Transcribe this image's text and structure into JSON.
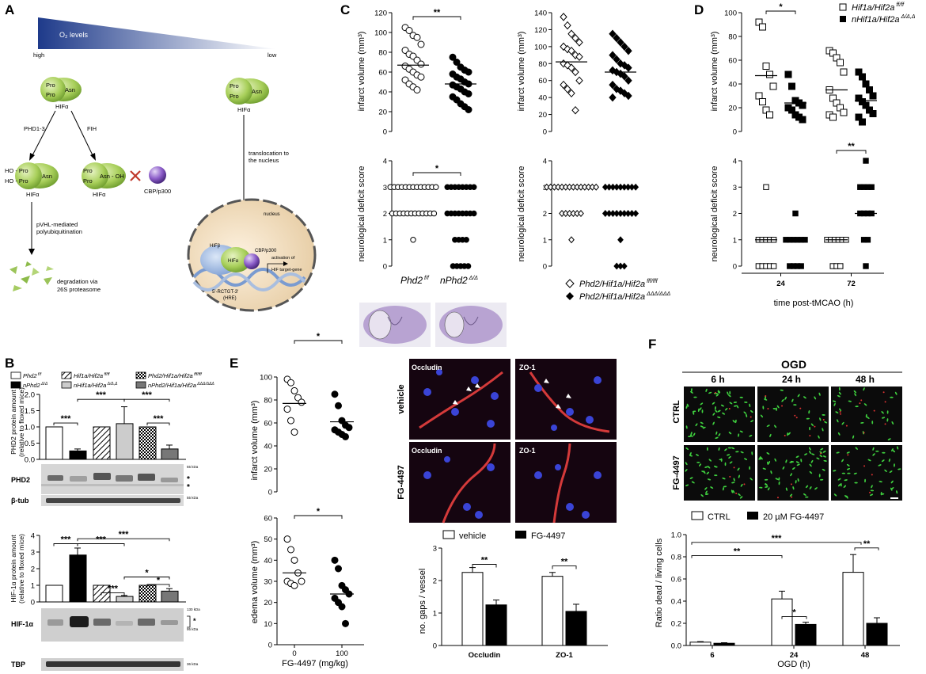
{
  "panel_letters": {
    "A": "A",
    "B": "B",
    "C": "C",
    "D": "D",
    "E": "E",
    "F": "F"
  },
  "panelA": {
    "o2_label": "O₂ levels",
    "high": "high",
    "low": "low",
    "pro": "Pro",
    "asn": "Asn",
    "hif_alpha": "HIFα",
    "phd": "PHD1-3",
    "fih": "FIH",
    "ho_pro": "HO - Pro",
    "asn_oh": "Asn - OH",
    "cbp": "CBP/p300",
    "pvhl_1": "pVHL-mediated",
    "pvhl_2": "polyubiquitination",
    "deg_1": "degradation via",
    "deg_2": "26S proteasome",
    "transloc_1": "translocation to",
    "transloc_2": "the nucleus",
    "nucleus": "nucleus",
    "hif_beta": "HIFβ",
    "hre_seq": "5'-RCTGT-3'",
    "hre": "(HRE)",
    "act_1": "activation of",
    "act_2": "HIF target-gene"
  },
  "panelB": {
    "legend": [
      {
        "label": "Phd2",
        "sup": " f/f",
        "fill": "#ffffff",
        "pattern": "none"
      },
      {
        "label": "nPhd2",
        "sup": " Δ/Δ",
        "fill": "#000000",
        "pattern": "none"
      },
      {
        "label": "Hif1a/Hif2a",
        "sup": " ff/ff",
        "fill": "#ffffff",
        "pattern": "hatch"
      },
      {
        "label": "nHif1a/Hif2a",
        "sup": " Δ/Δ,Δ",
        "fill": "#cccccc",
        "pattern": "none"
      },
      {
        "label": "Phd2/Hif1a/Hif2a",
        "sup": " fff/fff",
        "fill": "#ffffff",
        "pattern": "check"
      },
      {
        "label": "nPhd2/Hif1a/Hif2a",
        "sup": " ΔΔΔ/ΔΔΔ",
        "fill": "#777777",
        "pattern": "none"
      }
    ],
    "phd2_ylabel_1": "PHD2 protein amount",
    "phd2_ylabel_2": "(relative to floxed mice)",
    "hif_ylabel_1": "HIF-1α protein amount",
    "hif_ylabel_2": "(relative to floxed mice)",
    "blot_labels": {
      "phd2": "PHD2",
      "btub": "β-tub",
      "hif": "HIF-1α",
      "tbp": "TBP"
    },
    "kda": {
      "k55a": "55 kDa",
      "k55b": "55 kDa",
      "k130": "130 kDa",
      "k95": "95 kDa",
      "k36": "36 kDa"
    },
    "star": "*"
  },
  "panelC": {
    "infarct_ylabel": "infarct volume (mm³)",
    "nds_ylabel": "neurological deficit score",
    "left_groups": [
      "Phd2",
      "nPhd2"
    ],
    "left_groups_sup": [
      " f/f",
      " Δ/Δ"
    ],
    "legend_1": "Phd2/Hif1a/Hif2a",
    "legend_1_sup": " fff/fff",
    "legend_2": "Phd2/Hif1a/Hif2a",
    "legend_2_sup": " ΔΔΔ/ΔΔΔ"
  },
  "panelD": {
    "infarct_ylabel": "infarct volume (mm³)",
    "nds_ylabel": "neurological deficit score",
    "xlabel": "time post-tMCAO (h)",
    "legend_1": "Hif1a/Hif2a",
    "legend_1_sup": " ff/ff",
    "legend_2": "nHif1a/Hif2a",
    "legend_2_sup": " Δ/Δ,Δ"
  },
  "panelE": {
    "infarct_ylabel": "infarct volume (mm³)",
    "edema_ylabel": "edema volume (mm³)",
    "xlabel": "FG-4497 (mg/kg)",
    "micro_labels": [
      "Occludin",
      "ZO-1",
      "Occludin",
      "ZO-1"
    ],
    "row_labels": [
      "vehicle",
      "FG-4497"
    ],
    "bar_ylabel": "no. gaps / vessel",
    "legend": [
      "vehicle",
      "FG-4497"
    ]
  },
  "panelF": {
    "ogd": "OGD",
    "times": [
      "6 h",
      "24 h",
      "48 h"
    ],
    "rows": [
      "CTRL",
      "FG-4497"
    ],
    "ylabel": "Ratio dead / living cells",
    "xlabel": "OGD (h)",
    "legend": [
      "CTRL",
      "20 µM FG-4497"
    ]
  },
  "chart_data": [
    {
      "id": "B_phd2",
      "type": "bar",
      "categories": [
        "Phd2 f/f",
        "nPhd2",
        "Hif1a/Hif2a ff/ff",
        "nHif1a/Hif2a",
        "Phd2/Hif1a/Hif2a fff/fff",
        "nPhd2/Hif1a/Hif2a"
      ],
      "values": [
        1.0,
        0.26,
        1.0,
        1.1,
        1.0,
        0.32
      ],
      "errors": [
        0,
        0.06,
        0,
        0.52,
        0,
        0.12
      ],
      "ylim": [
        0,
        2
      ],
      "yticks": [
        0,
        0.5,
        1.0,
        1.5,
        2.0
      ],
      "significance": [
        "***",
        "***",
        "***",
        "***"
      ]
    },
    {
      "id": "B_hif",
      "type": "bar",
      "categories": [
        "Phd2 f/f",
        "nPhd2",
        "Hif1a/Hif2a ff/ff",
        "nHif1a/Hif2a",
        "Phd2/Hif1a/Hif2a fff/fff",
        "nPhd2/Hif1a/Hif2a"
      ],
      "values": [
        1.0,
        2.82,
        1.0,
        0.33,
        1.0,
        0.65
      ],
      "errors": [
        0,
        0.42,
        0,
        0.06,
        0,
        0.15
      ],
      "ylim": [
        0,
        4
      ],
      "yticks": [
        0,
        1,
        2,
        3,
        4
      ],
      "significance": [
        "***",
        "***",
        "***",
        "***",
        "*",
        "*"
      ]
    },
    {
      "id": "C_infarct_left",
      "type": "scatter",
      "ylabel": "infarct volume (mm³)",
      "ylim": [
        0,
        120
      ],
      "yticks": [
        0,
        20,
        40,
        60,
        80,
        100,
        120
      ],
      "series": [
        {
          "name": "Phd2 f/f",
          "marker": "open-circle",
          "mean": 67,
          "values": [
            105,
            102,
            97,
            95,
            88,
            82,
            78,
            76,
            72,
            68,
            66,
            63,
            60,
            57,
            55,
            52,
            48,
            45,
            42
          ]
        },
        {
          "name": "nPhd2 Δ/Δ",
          "marker": "filled-circle",
          "mean": 48,
          "values": [
            75,
            70,
            65,
            62,
            60,
            58,
            55,
            53,
            50,
            48,
            47,
            45,
            43,
            40,
            38,
            35,
            32,
            28,
            25,
            22
          ]
        }
      ],
      "significance": "**"
    },
    {
      "id": "C_infarct_right",
      "type": "scatter",
      "ylabel": "infarct volume (mm³)",
      "ylim": [
        0,
        140
      ],
      "yticks": [
        0,
        20,
        40,
        60,
        80,
        100,
        120,
        140
      ],
      "series": [
        {
          "name": "Phd2/Hif1a/Hif2a fff/fff",
          "marker": "open-diamond",
          "mean": 82,
          "values": [
            135,
            125,
            115,
            110,
            105,
            100,
            97,
            95,
            90,
            88,
            80,
            78,
            75,
            70,
            60,
            55,
            50,
            45,
            25
          ]
        },
        {
          "name": "Phd2/Hif1a/Hif2a ΔΔΔ/ΔΔΔ",
          "marker": "filled-diamond",
          "mean": 70,
          "values": [
            115,
            110,
            105,
            100,
            95,
            90,
            85,
            80,
            78,
            75,
            72,
            70,
            68,
            65,
            60,
            55,
            50,
            48,
            45,
            42,
            40
          ]
        }
      ]
    },
    {
      "id": "C_nds_left",
      "type": "scatter",
      "ylabel": "neurological deficit score",
      "ylim": [
        0,
        4
      ],
      "yticks": [
        0,
        1,
        2,
        3,
        4
      ],
      "series": [
        {
          "name": "Phd2 f/f",
          "marker": "open-circle",
          "counts": {
            "3": 13,
            "2": 12,
            "1": 1
          }
        },
        {
          "name": "nPhd2 Δ/Δ",
          "marker": "filled-circle",
          "counts": {
            "3": 8,
            "2": 8,
            "1": 4,
            "0": 5
          }
        }
      ],
      "significance": "*"
    },
    {
      "id": "C_nds_right",
      "type": "scatter",
      "ylabel": "neurological deficit score",
      "ylim": [
        0,
        4
      ],
      "yticks": [
        0,
        1,
        2,
        3,
        4
      ],
      "series": [
        {
          "name": "Phd2/Hif1a/Hif2a fff/fff",
          "marker": "open-diamond",
          "counts": {
            "3": 14,
            "2": 6,
            "1": 1
          }
        },
        {
          "name": "Phd2/Hif1a/Hif2a ΔΔΔ/ΔΔΔ",
          "marker": "filled-diamond",
          "counts": {
            "3": 9,
            "2": 9,
            "1": 1,
            "0": 3
          }
        }
      ]
    },
    {
      "id": "D_infarct",
      "type": "scatter",
      "categories": [
        "24",
        "72"
      ],
      "ylabel": "infarct volume (mm³)",
      "ylim": [
        0,
        100
      ],
      "yticks": [
        0,
        20,
        40,
        60,
        80,
        100
      ],
      "series": [
        {
          "name": "Hif1a/Hif2a ff/ff",
          "marker": "open-square",
          "group_values": [
            [
              92,
              88,
              55,
              48,
              38,
              30,
              25,
              18,
              14
            ],
            [
              68,
              66,
              62,
              58,
              50,
              35,
              28,
              24,
              20,
              16,
              14,
              12
            ]
          ],
          "means": [
            47,
            35
          ]
        },
        {
          "name": "nHif1a/Hif2a Δ/Δ,Δ",
          "marker": "filled-square",
          "group_values": [
            [
              48,
              38,
              26,
              24,
              22,
              20,
              18,
              14,
              12,
              10
            ],
            [
              50,
              46,
              40,
              35,
              30,
              28,
              25,
              22,
              18,
              15,
              12,
              8
            ]
          ],
          "means": [
            24,
            26
          ]
        }
      ],
      "significance": "*"
    },
    {
      "id": "D_nds",
      "type": "scatter",
      "categories": [
        "24",
        "72"
      ],
      "ylabel": "neurological deficit score",
      "ylim": [
        0,
        4
      ],
      "yticks": [
        0,
        1,
        2,
        3,
        4
      ],
      "series": [
        {
          "name": "Hif1a/Hif2a ff/ff",
          "marker": "open-square",
          "group_counts": [
            {
              "3": 1,
              "1": 5,
              "0": 5
            },
            {
              "1": 6,
              "0": 3
            }
          ],
          "means": [
            1,
            1
          ]
        },
        {
          "name": "nHif1a/Hif2a Δ/Δ,Δ",
          "marker": "filled-square",
          "group_counts": [
            {
              "2": 1,
              "1": 6,
              "0": 4
            },
            {
              "4": 1,
              "3": 4,
              "2": 4,
              "1": 2,
              "0": 1
            }
          ],
          "means": [
            1,
            2
          ]
        }
      ],
      "xlabel": "time post-tMCAO (h)",
      "significance": "**"
    },
    {
      "id": "E_infarct",
      "type": "scatter",
      "categories": [
        "0",
        "100"
      ],
      "ylim": [
        0,
        100
      ],
      "yticks": [
        0,
        20,
        40,
        60,
        80,
        100
      ],
      "series": [
        {
          "name": "0",
          "marker": "open-circle",
          "values": [
            98,
            95,
            88,
            82,
            78,
            72,
            62,
            52
          ],
          "mean": 77
        },
        {
          "name": "100",
          "marker": "filled-circle",
          "values": [
            85,
            75,
            62,
            58,
            56,
            54,
            52,
            50,
            48
          ],
          "mean": 61
        }
      ],
      "significance": "*"
    },
    {
      "id": "E_edema",
      "type": "scatter",
      "categories": [
        "0",
        "100"
      ],
      "ylim": [
        0,
        60
      ],
      "yticks": [
        0,
        10,
        20,
        30,
        40,
        50,
        60
      ],
      "series": [
        {
          "name": "0",
          "marker": "open-circle",
          "values": [
            50,
            45,
            40,
            34,
            30,
            30,
            29,
            28
          ],
          "mean": 34
        },
        {
          "name": "100",
          "marker": "filled-circle",
          "values": [
            40,
            36,
            28,
            26,
            24,
            22,
            20,
            18,
            10
          ],
          "mean": 24
        }
      ],
      "xlabel": "FG-4497 (mg/kg)",
      "significance": "*"
    },
    {
      "id": "E_gaps",
      "type": "bar",
      "categories": [
        "Occludin",
        "ZO-1"
      ],
      "series": [
        {
          "name": "vehicle",
          "values": [
            2.25,
            2.13
          ],
          "errors": [
            0.15,
            0.12
          ]
        },
        {
          "name": "FG-4497",
          "values": [
            1.25,
            1.05
          ],
          "errors": [
            0.15,
            0.22
          ]
        }
      ],
      "ylabel": "no. gaps / vessel",
      "ylim": [
        0,
        3
      ],
      "yticks": [
        0,
        1,
        2,
        3
      ],
      "significance": [
        "**",
        "**"
      ]
    },
    {
      "id": "F_ratio",
      "type": "bar",
      "categories": [
        "6",
        "24",
        "48"
      ],
      "series": [
        {
          "name": "CTRL",
          "values": [
            0.03,
            0.42,
            0.66
          ],
          "errors": [
            0.005,
            0.07,
            0.16
          ]
        },
        {
          "name": "20 µM FG-4497",
          "values": [
            0.02,
            0.19,
            0.2
          ],
          "errors": [
            0.005,
            0.02,
            0.05
          ]
        }
      ],
      "ylabel": "Ratio dead / living cells",
      "xlabel": "OGD (h)",
      "ylim": [
        0,
        1.0
      ],
      "yticks": [
        0,
        0.2,
        0.4,
        0.6,
        0.8,
        1.0
      ],
      "significance": [
        "***",
        "**",
        "*",
        "**"
      ]
    }
  ]
}
